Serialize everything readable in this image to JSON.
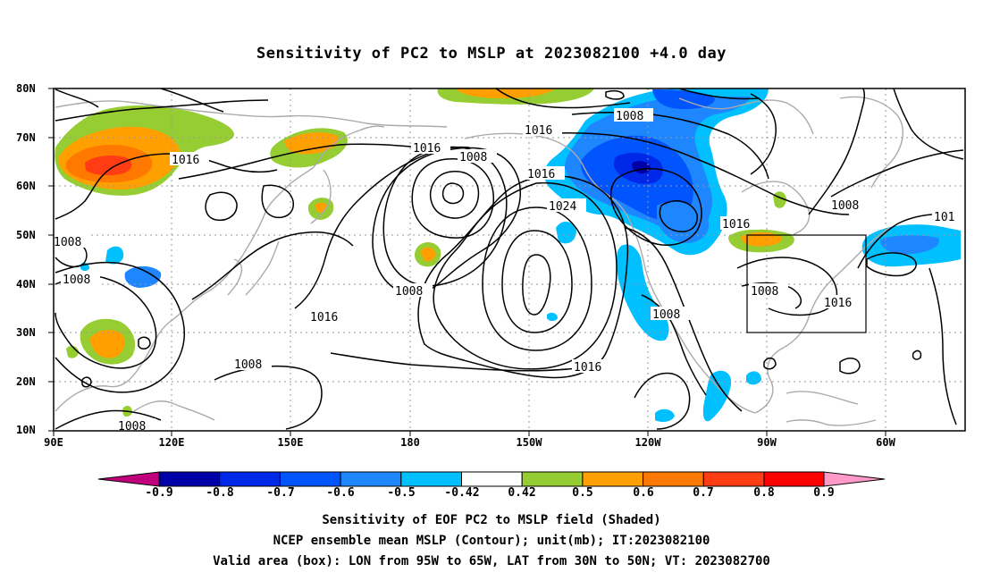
{
  "title": "Sensitivity of PC2 to MSLP at 2023082100 +4.0 day",
  "lat_labels": [
    "80N",
    "70N",
    "60N",
    "50N",
    "40N",
    "30N",
    "20N",
    "10N"
  ],
  "lon_labels": [
    "90E",
    "120E",
    "150E",
    "180",
    "150W",
    "120W",
    "90W",
    "60W"
  ],
  "contour_labels": [
    "1016",
    "1008",
    "1016",
    "1008",
    "1016",
    "1008",
    "1024",
    "1008",
    "1016",
    "1016",
    "1008",
    "1008",
    "1016",
    "1008",
    "1008",
    "1016",
    "1008",
    "1008",
    "101"
  ],
  "colorbar": {
    "labels": [
      "-0.9",
      "-0.8",
      "-0.7",
      "-0.6",
      "-0.5",
      "-0.42",
      "0.42",
      "0.5",
      "0.6",
      "0.7",
      "0.8",
      "0.9"
    ],
    "colors": [
      "#c0007a",
      "#0000a8",
      "#0028e8",
      "#0055ff",
      "#1e86ff",
      "#00c0ff",
      "#ffffff",
      "#96cd32",
      "#ffa000",
      "#ff7800",
      "#ff3c14",
      "#ff0000",
      "#ff9ac8"
    ]
  },
  "valid_box": {
    "lon_from": "95W",
    "lon_to": "65W",
    "lat_from": "30N",
    "lat_to": "50N"
  },
  "captions": [
    "Sensitivity of EOF PC2 to MSLP field (Shaded)",
    "NCEP ensemble mean MSLP (Contour); unit(mb); IT:2023082100",
    "Valid area (box): LON from 95W to 65W, LAT from 30N to 50N; VT: 2023082700"
  ]
}
